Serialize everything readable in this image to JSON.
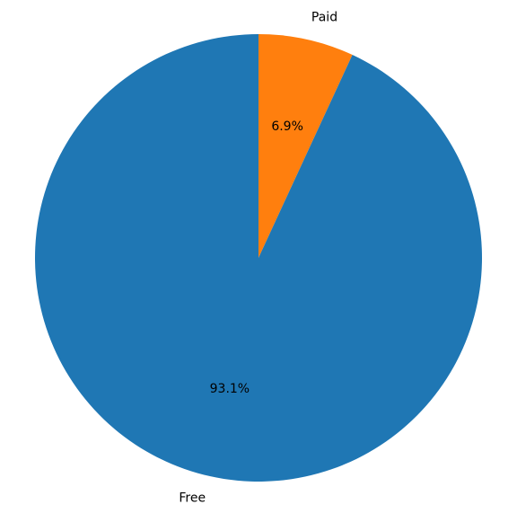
{
  "chart_data": {
    "type": "pie",
    "slices": [
      {
        "label": "Paid",
        "value": 6.9,
        "pct_label": "6.9%",
        "color": "#ff7f0e"
      },
      {
        "label": "Free",
        "value": 93.1,
        "pct_label": "93.1%",
        "color": "#1f77b4"
      }
    ],
    "start_angle": "top",
    "direction": "clockwise",
    "legend": "none"
  }
}
